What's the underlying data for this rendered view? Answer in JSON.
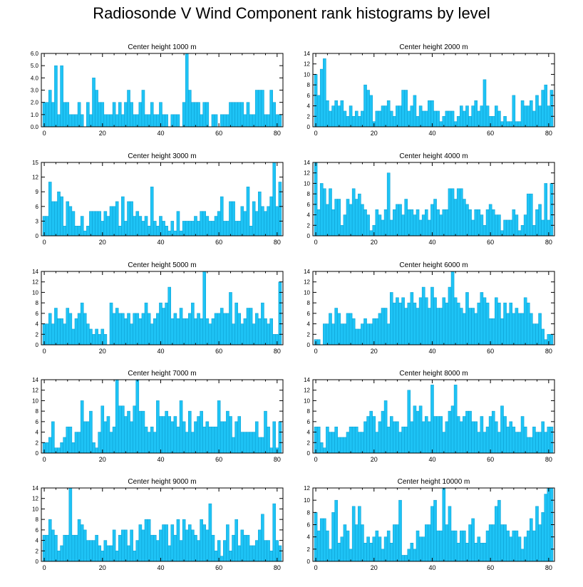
{
  "title": "Radiosonde V Wind Component rank histograms by level",
  "colors": {
    "bar_fill": "#1ec3f5",
    "bar_stroke": "#0a9dd0",
    "axis": "#000000"
  },
  "chart_data": [
    {
      "type": "bar",
      "title": "Center height 1000 m",
      "xticks": [
        0,
        20,
        40,
        60,
        80
      ],
      "yticks": [
        "0.0",
        "1.0",
        "2.0",
        "3.0",
        "4.0",
        "5.0",
        "6.0"
      ],
      "ylim": [
        0,
        6
      ],
      "xlim": [
        -1,
        82
      ],
      "values": [
        2,
        2,
        3,
        2,
        5,
        1,
        5,
        2,
        2,
        1,
        1,
        1,
        2,
        1,
        0,
        2,
        1,
        4,
        3,
        2,
        2,
        1,
        1,
        1,
        2,
        1,
        2,
        1,
        2,
        3,
        2,
        1,
        1,
        2,
        3,
        1,
        1,
        2,
        1,
        1,
        2,
        1,
        1,
        0,
        1,
        1,
        1,
        0,
        2,
        6,
        3,
        2,
        2,
        2,
        1,
        2,
        2,
        0,
        1,
        1,
        0,
        1,
        1,
        1,
        2,
        2,
        2,
        2,
        2,
        1,
        2,
        1,
        1,
        3,
        3,
        3,
        1,
        1,
        3,
        2,
        1,
        1
      ]
    },
    {
      "type": "bar",
      "title": "Center height 2000 m",
      "xticks": [
        0,
        20,
        40,
        60,
        80
      ],
      "yticks": [
        "0",
        "2",
        "4",
        "6",
        "8",
        "10",
        "12",
        "14"
      ],
      "ylim": [
        0,
        14
      ],
      "xlim": [
        -1,
        82
      ],
      "values": [
        10,
        6,
        11,
        13,
        5,
        3,
        4,
        5,
        4,
        5,
        3,
        2,
        4,
        2,
        3,
        2,
        3,
        8,
        7,
        6,
        1,
        3,
        3,
        4,
        4,
        5,
        3,
        2,
        4,
        4,
        7,
        7,
        3,
        4,
        6,
        2,
        4,
        3,
        3,
        5,
        5,
        3,
        3,
        1,
        2,
        3,
        3,
        3,
        1,
        2,
        4,
        3,
        4,
        2,
        4,
        5,
        3,
        4,
        9,
        4,
        2,
        2,
        4,
        3,
        1,
        2,
        1,
        1,
        6,
        1,
        1,
        5,
        4,
        4,
        5,
        3,
        6,
        4,
        7,
        8,
        4,
        7
      ]
    },
    {
      "type": "bar",
      "title": "Center height 3000 m",
      "xticks": [
        0,
        20,
        40,
        60,
        80
      ],
      "yticks": [
        "0",
        "3",
        "6",
        "9",
        "12",
        "15"
      ],
      "ylim": [
        0,
        15
      ],
      "xlim": [
        -1,
        82
      ],
      "values": [
        4,
        4,
        11,
        7,
        7,
        9,
        8,
        2,
        7,
        6,
        5,
        2,
        2,
        4,
        1,
        2,
        5,
        5,
        5,
        5,
        3,
        5,
        4,
        6,
        6,
        7,
        2,
        8,
        3,
        7,
        7,
        4,
        5,
        4,
        3,
        4,
        2,
        10,
        3,
        2,
        4,
        3,
        2,
        1,
        3,
        1,
        5,
        1,
        3,
        3,
        3,
        3,
        4,
        3,
        5,
        5,
        4,
        3,
        3,
        4,
        5,
        8,
        3,
        3,
        7,
        7,
        3,
        3,
        6,
        5,
        10,
        2,
        7,
        5,
        9,
        6,
        5,
        6,
        8,
        15,
        6,
        11
      ]
    },
    {
      "type": "bar",
      "title": "Center height 4000 m",
      "xticks": [
        0,
        20,
        40,
        60,
        80
      ],
      "yticks": [
        "0",
        "2",
        "4",
        "6",
        "8",
        "10",
        "12",
        "14"
      ],
      "ylim": [
        0,
        14
      ],
      "xlim": [
        -1,
        82
      ],
      "values": [
        14,
        5,
        10,
        9,
        6,
        9,
        5,
        7,
        7,
        2,
        4,
        7,
        6,
        9,
        7,
        8,
        6,
        5,
        4,
        1,
        2,
        5,
        4,
        3,
        5,
        12,
        3,
        5,
        6,
        6,
        4,
        7,
        5,
        5,
        4,
        5,
        3,
        4,
        5,
        3,
        6,
        7,
        5,
        4,
        5,
        5,
        9,
        9,
        7,
        9,
        9,
        7,
        6,
        5,
        3,
        5,
        5,
        4,
        2,
        5,
        6,
        5,
        4,
        4,
        1,
        3,
        3,
        3,
        5,
        4,
        1,
        2,
        4,
        8,
        8,
        2,
        5,
        6,
        3,
        10,
        3,
        10
      ]
    },
    {
      "type": "bar",
      "title": "Center height 5000 m",
      "xticks": [
        0,
        20,
        40,
        60,
        80
      ],
      "yticks": [
        "0",
        "2",
        "4",
        "6",
        "8",
        "10",
        "12",
        "14"
      ],
      "ylim": [
        0,
        14
      ],
      "xlim": [
        -1,
        82
      ],
      "values": [
        4,
        4,
        6,
        4,
        7,
        5,
        5,
        4,
        7,
        6,
        3,
        5,
        6,
        8,
        6,
        4,
        3,
        2,
        3,
        2,
        3,
        2,
        0,
        8,
        6,
        7,
        6,
        6,
        5,
        6,
        4,
        6,
        6,
        5,
        6,
        8,
        6,
        4,
        5,
        6,
        8,
        7,
        8,
        11,
        5,
        6,
        5,
        7,
        5,
        5,
        6,
        8,
        5,
        6,
        5,
        14,
        5,
        4,
        5,
        6,
        6,
        7,
        6,
        6,
        10,
        4,
        8,
        6,
        4,
        5,
        7,
        7,
        4,
        6,
        5,
        8,
        5,
        4,
        5,
        2,
        2,
        12
      ]
    },
    {
      "type": "bar",
      "title": "Center height 6000 m",
      "xticks": [
        0,
        20,
        40,
        60,
        80
      ],
      "yticks": [
        "0",
        "2",
        "4",
        "6",
        "8",
        "10",
        "12",
        "14"
      ],
      "ylim": [
        0,
        14
      ],
      "xlim": [
        -1,
        82
      ],
      "values": [
        1,
        1,
        0,
        4,
        4,
        6,
        4,
        7,
        6,
        4,
        4,
        6,
        6,
        5,
        3,
        3,
        4,
        5,
        4,
        4,
        5,
        5,
        6,
        7,
        7,
        4,
        10,
        8,
        9,
        8,
        9,
        7,
        8,
        10,
        8,
        7,
        9,
        11,
        9,
        7,
        11,
        9,
        7,
        7,
        9,
        8,
        11,
        14,
        9,
        8,
        7,
        6,
        10,
        7,
        7,
        6,
        8,
        10,
        9,
        8,
        5,
        5,
        9,
        8,
        5,
        8,
        6,
        8,
        6,
        7,
        6,
        6,
        9,
        8,
        6,
        4,
        4,
        6,
        3,
        1,
        2,
        2
      ]
    },
    {
      "type": "bar",
      "title": "Center height 7000 m",
      "xticks": [
        0,
        20,
        40,
        60,
        80
      ],
      "yticks": [
        "0",
        "2",
        "4",
        "6",
        "8",
        "10",
        "12",
        "14"
      ],
      "ylim": [
        0,
        14
      ],
      "xlim": [
        -1,
        82
      ],
      "values": [
        2,
        2,
        3,
        6,
        1,
        1,
        2,
        3,
        5,
        5,
        2,
        4,
        4,
        10,
        6,
        6,
        8,
        2,
        1,
        4,
        9,
        6,
        7,
        4,
        5,
        14,
        9,
        9,
        7,
        8,
        6,
        9,
        14,
        8,
        8,
        5,
        4,
        5,
        4,
        10,
        7,
        7,
        8,
        7,
        6,
        7,
        5,
        10,
        6,
        4,
        8,
        4,
        6,
        7,
        8,
        5,
        6,
        5,
        5,
        5,
        10,
        6,
        6,
        8,
        7,
        3,
        6,
        7,
        4,
        4,
        4,
        4,
        4,
        6,
        3,
        3,
        8,
        5,
        1,
        6,
        1,
        6
      ]
    },
    {
      "type": "bar",
      "title": "Center height 8000 m",
      "xticks": [
        0,
        20,
        40,
        60,
        80
      ],
      "yticks": [
        "0",
        "2",
        "4",
        "6",
        "8",
        "10",
        "12",
        "14"
      ],
      "ylim": [
        0,
        14
      ],
      "xlim": [
        -1,
        82
      ],
      "values": [
        5,
        5,
        2,
        1,
        5,
        4,
        4,
        5,
        3,
        3,
        3,
        4,
        5,
        5,
        5,
        4,
        4,
        6,
        7,
        8,
        7,
        4,
        6,
        8,
        10,
        5,
        7,
        6,
        6,
        4,
        5,
        5,
        12,
        6,
        9,
        8,
        9,
        6,
        7,
        6,
        13,
        7,
        7,
        7,
        4,
        6,
        8,
        9,
        13,
        7,
        6,
        7,
        8,
        8,
        6,
        6,
        4,
        7,
        4,
        5,
        7,
        8,
        6,
        4,
        9,
        7,
        5,
        6,
        5,
        4,
        4,
        7,
        5,
        3,
        3,
        5,
        4,
        4,
        6,
        4,
        5,
        5
      ]
    },
    {
      "type": "bar",
      "title": "Center height 9000 m",
      "xticks": [
        0,
        20,
        40,
        60,
        80
      ],
      "yticks": [
        "0",
        "2",
        "4",
        "6",
        "8",
        "10",
        "12",
        "14"
      ],
      "ylim": [
        0,
        14
      ],
      "xlim": [
        -1,
        82
      ],
      "values": [
        5,
        5,
        8,
        6,
        5,
        2,
        3,
        5,
        5,
        14,
        5,
        5,
        8,
        7,
        6,
        4,
        4,
        4,
        5,
        3,
        2,
        4,
        3,
        3,
        6,
        2,
        5,
        6,
        6,
        3,
        6,
        2,
        4,
        7,
        6,
        8,
        8,
        5,
        5,
        4,
        6,
        7,
        7,
        3,
        7,
        5,
        8,
        4,
        8,
        6,
        7,
        6,
        5,
        4,
        8,
        7,
        6,
        11,
        5,
        2,
        4,
        1,
        4,
        7,
        2,
        5,
        8,
        3,
        6,
        5,
        5,
        3,
        3,
        4,
        6,
        9,
        4,
        4,
        2,
        11,
        4,
        3
      ]
    },
    {
      "type": "bar",
      "title": "Center height 10000 m",
      "xticks": [
        0,
        20,
        40,
        60,
        80
      ],
      "yticks": [
        "0",
        "2",
        "4",
        "6",
        "8",
        "10",
        "12"
      ],
      "ylim": [
        0,
        12
      ],
      "xlim": [
        -1,
        82
      ],
      "values": [
        8,
        5,
        7,
        7,
        5,
        2,
        8,
        10,
        3,
        4,
        6,
        5,
        2,
        9,
        6,
        9,
        6,
        3,
        4,
        3,
        4,
        5,
        4,
        2,
        4,
        5,
        3,
        6,
        6,
        10,
        1,
        1,
        2,
        3,
        2,
        5,
        4,
        4,
        6,
        6,
        9,
        10,
        5,
        5,
        12,
        6,
        9,
        5,
        5,
        3,
        5,
        5,
        3,
        6,
        7,
        3,
        4,
        3,
        3,
        5,
        6,
        6,
        9,
        10,
        6,
        6,
        5,
        4,
        5,
        5,
        4,
        2,
        4,
        5,
        7,
        5,
        9,
        6,
        8,
        11,
        12,
        12
      ]
    }
  ]
}
